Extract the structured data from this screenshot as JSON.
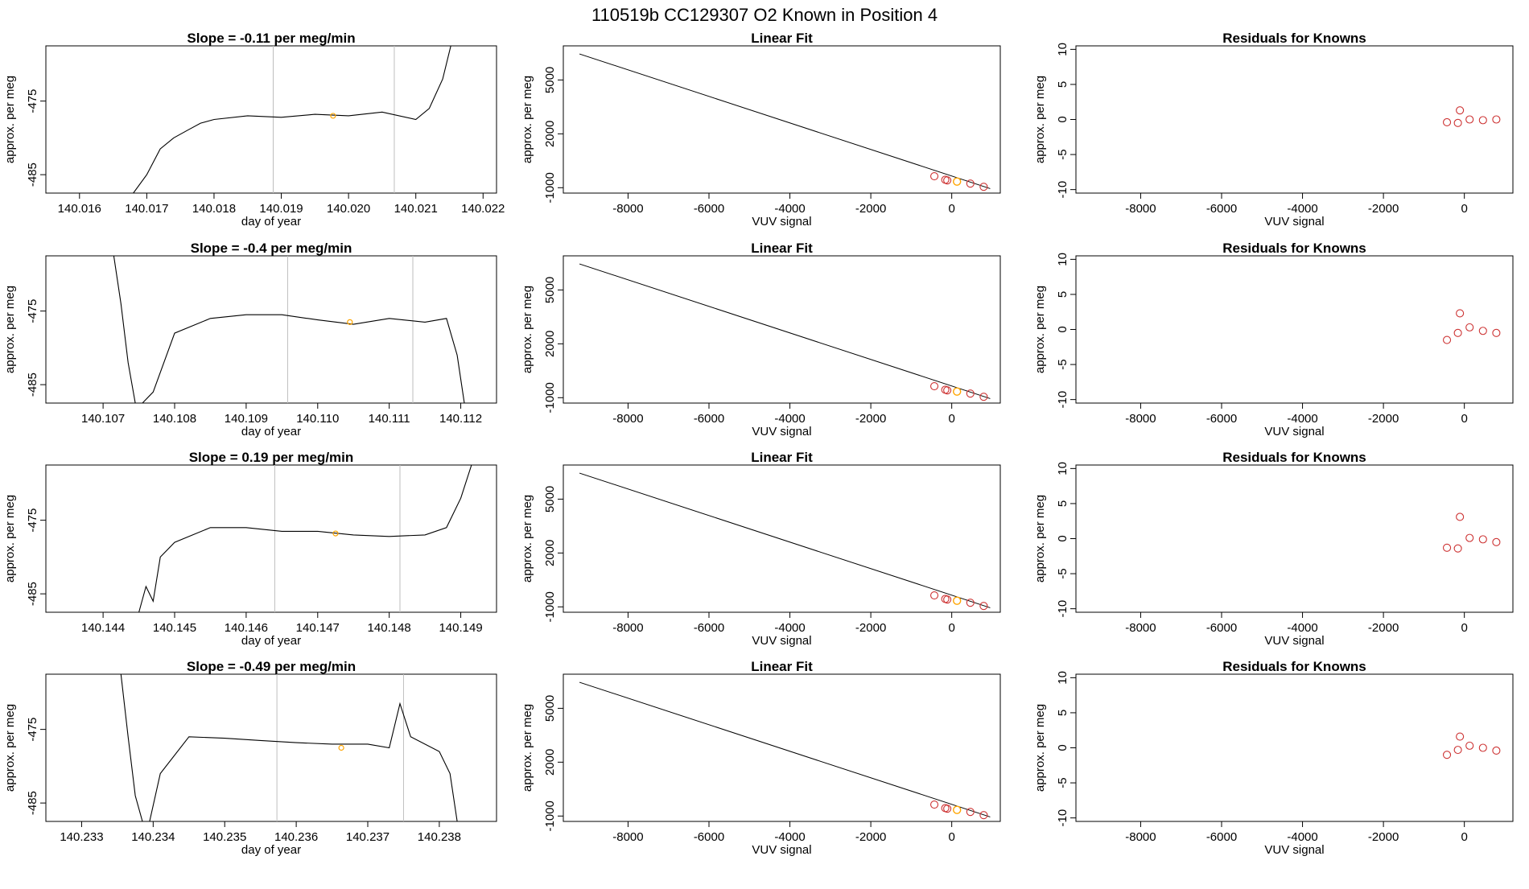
{
  "page_title": "110519b      CC129307    O2 Known in Position  4",
  "colors": {
    "trace": "#000000",
    "marker": "#ffa500",
    "residual": "#cd3333",
    "window": "#bebebe",
    "frame": "#000000"
  },
  "chart_data": [
    {
      "type": "line",
      "title": "Slope =  -0.11  per meg/min",
      "xlabel": "day of year",
      "ylabel": "approx. per meg",
      "xlim": [
        140.0155,
        140.0222
      ],
      "ylim": [
        -487.5,
        -467.5
      ],
      "xticks": [
        "140.016",
        "140.017",
        "140.018",
        "140.019",
        "140.020",
        "140.021",
        "140.022"
      ],
      "xtick_values": [
        140.016,
        140.017,
        140.018,
        140.019,
        140.02,
        140.021,
        140.022
      ],
      "yticks": [
        "-485",
        "-475"
      ],
      "ytick_values": [
        -485,
        -475
      ],
      "window_lines": [
        140.01888,
        140.02068
      ],
      "marker": [
        140.01977,
        -477.0
      ],
      "series": [
        {
          "x": [
            140.0168,
            140.017,
            140.0172,
            140.0174,
            140.0176,
            140.0178,
            140.018,
            140.0185,
            140.019,
            140.0195,
            140.02,
            140.0205,
            140.021,
            140.0212,
            140.0214,
            140.02152
          ],
          "y": [
            -487.5,
            -485.0,
            -481.5,
            -480.0,
            -479.0,
            -478.0,
            -477.5,
            -477.0,
            -477.2,
            -476.8,
            -477.0,
            -476.5,
            -477.5,
            -476.0,
            -472.0,
            -467.5
          ]
        }
      ]
    },
    {
      "type": "line",
      "title": "Slope =  -0.4  per meg/min",
      "xlabel": "day of year",
      "ylabel": "approx. per meg",
      "xlim": [
        140.1062,
        140.1125
      ],
      "ylim": [
        -487.5,
        -467.5
      ],
      "xticks": [
        "140.107",
        "140.108",
        "140.109",
        "140.110",
        "140.111",
        "140.112"
      ],
      "xtick_values": [
        140.107,
        140.108,
        140.109,
        140.11,
        140.111,
        140.112
      ],
      "yticks": [
        "-485",
        "-475"
      ],
      "ytick_values": [
        -485,
        -475
      ],
      "window_lines": [
        140.10958,
        140.11133
      ],
      "marker": [
        140.11045,
        -476.5
      ],
      "series": [
        {
          "x": [
            140.10715,
            140.10725,
            140.10735,
            140.10745,
            140.10755,
            140.1077,
            140.108,
            140.1085,
            140.109,
            140.1095,
            140.11,
            140.1105,
            140.111,
            140.1115,
            140.1118,
            140.11195,
            140.11205
          ],
          "y": [
            -467.5,
            -474.0,
            -482.0,
            -487.5,
            -487.5,
            -486.0,
            -478.0,
            -476.0,
            -475.5,
            -475.5,
            -476.2,
            -476.8,
            -476.0,
            -476.5,
            -476.0,
            -481.0,
            -487.5
          ]
        }
      ]
    },
    {
      "type": "line",
      "title": "Slope =  0.19  per meg/min",
      "xlabel": "day of year",
      "ylabel": "approx. per meg",
      "xlim": [
        140.1432,
        140.1495
      ],
      "ylim": [
        -487.5,
        -467.5
      ],
      "xticks": [
        "140.144",
        "140.145",
        "140.146",
        "140.147",
        "140.148",
        "140.149"
      ],
      "xtick_values": [
        140.144,
        140.145,
        140.146,
        140.147,
        140.148,
        140.149
      ],
      "yticks": [
        "-485",
        "-475"
      ],
      "ytick_values": [
        -485,
        -475
      ],
      "window_lines": [
        140.1464,
        140.14815
      ],
      "marker": [
        140.14725,
        -476.8
      ],
      "series": [
        {
          "x": [
            140.1445,
            140.1446,
            140.1447,
            140.1448,
            140.145,
            140.1455,
            140.146,
            140.1465,
            140.147,
            140.1475,
            140.148,
            140.1485,
            140.1488,
            140.149,
            140.14915
          ],
          "y": [
            -487.5,
            -484.0,
            -486.0,
            -480.0,
            -478.0,
            -476.0,
            -476.0,
            -476.5,
            -476.5,
            -477.0,
            -477.2,
            -477.0,
            -476.0,
            -472.0,
            -467.5
          ]
        }
      ]
    },
    {
      "type": "line",
      "title": "Slope =  -0.49  per meg/min",
      "xlabel": "day of year",
      "ylabel": "approx. per meg",
      "xlim": [
        140.2325,
        140.2388
      ],
      "ylim": [
        -487.5,
        -467.5
      ],
      "xticks": [
        "140.233",
        "140.234",
        "140.235",
        "140.236",
        "140.237",
        "140.238"
      ],
      "xtick_values": [
        140.233,
        140.234,
        140.235,
        140.236,
        140.237,
        140.238
      ],
      "yticks": [
        "-485",
        "-475"
      ],
      "ytick_values": [
        -485,
        -475
      ],
      "window_lines": [
        140.23573,
        140.2375
      ],
      "marker": [
        140.23663,
        -477.5
      ],
      "series": [
        {
          "x": [
            140.23355,
            140.23365,
            140.23375,
            140.23385,
            140.23395,
            140.2341,
            140.2345,
            140.235,
            140.2355,
            140.236,
            140.2365,
            140.237,
            140.2373,
            140.23745,
            140.2376,
            140.238,
            140.23815,
            140.23825
          ],
          "y": [
            -467.5,
            -476.0,
            -484.0,
            -487.5,
            -487.5,
            -481.0,
            -476.0,
            -476.2,
            -476.5,
            -476.8,
            -477.0,
            -477.0,
            -477.5,
            -471.5,
            -476.0,
            -478.0,
            -481.0,
            -487.5
          ]
        }
      ]
    },
    {
      "type": "scatter",
      "title": "Linear Fit",
      "xlabel": "VUV signal",
      "ylabel": "approx. per meg",
      "xlim": [
        -9600,
        1200
      ],
      "ylim": [
        -1300,
        6900
      ],
      "xticks": [
        "-8000",
        "-6000",
        "-4000",
        "-2000",
        "0"
      ],
      "xtick_values": [
        -8000,
        -6000,
        -4000,
        -2000,
        0
      ],
      "yticks": [
        "-1000",
        "2000",
        "5000"
      ],
      "ytick_values": [
        -1000,
        2000,
        5000
      ],
      "line": {
        "x": [
          -9200,
          950
        ],
        "y": [
          6450,
          -1050
        ]
      },
      "points": [
        [
          -430,
          -360
        ],
        [
          -160,
          -560
        ],
        [
          -110,
          -590
        ],
        [
          790,
          -950
        ],
        [
          460,
          -770
        ]
      ],
      "known": [
        [
          130,
          -660
        ]
      ]
    },
    {
      "type": "scatter",
      "title": "Linear Fit",
      "xlabel": "VUV signal",
      "ylabel": "approx. per meg",
      "xlim": [
        -9600,
        1200
      ],
      "ylim": [
        -1300,
        6900
      ],
      "xticks": [
        "-8000",
        "-6000",
        "-4000",
        "-2000",
        "0"
      ],
      "xtick_values": [
        -8000,
        -6000,
        -4000,
        -2000,
        0
      ],
      "yticks": [
        "-1000",
        "2000",
        "5000"
      ],
      "ytick_values": [
        -1000,
        2000,
        5000
      ],
      "line": {
        "x": [
          -9200,
          950
        ],
        "y": [
          6450,
          -1050
        ]
      },
      "points": [
        [
          -430,
          -360
        ],
        [
          -160,
          -560
        ],
        [
          -110,
          -590
        ],
        [
          790,
          -950
        ],
        [
          460,
          -770
        ]
      ],
      "known": [
        [
          130,
          -660
        ]
      ]
    },
    {
      "type": "scatter",
      "title": "Linear Fit",
      "xlabel": "VUV signal",
      "ylabel": "approx. per meg",
      "xlim": [
        -9600,
        1200
      ],
      "ylim": [
        -1300,
        6900
      ],
      "xticks": [
        "-8000",
        "-6000",
        "-4000",
        "-2000",
        "0"
      ],
      "xtick_values": [
        -8000,
        -6000,
        -4000,
        -2000,
        0
      ],
      "yticks": [
        "-1000",
        "2000",
        "5000"
      ],
      "ytick_values": [
        -1000,
        2000,
        5000
      ],
      "line": {
        "x": [
          -9200,
          950
        ],
        "y": [
          6450,
          -1050
        ]
      },
      "points": [
        [
          -430,
          -360
        ],
        [
          -160,
          -560
        ],
        [
          -110,
          -590
        ],
        [
          790,
          -950
        ],
        [
          460,
          -770
        ]
      ],
      "known": [
        [
          130,
          -660
        ]
      ]
    },
    {
      "type": "scatter",
      "title": "Linear Fit",
      "xlabel": "VUV signal",
      "ylabel": "approx. per meg",
      "xlim": [
        -9600,
        1200
      ],
      "ylim": [
        -1300,
        6900
      ],
      "xticks": [
        "-8000",
        "-6000",
        "-4000",
        "-2000",
        "0"
      ],
      "xtick_values": [
        -8000,
        -6000,
        -4000,
        -2000,
        0
      ],
      "yticks": [
        "-1000",
        "2000",
        "5000"
      ],
      "ytick_values": [
        -1000,
        2000,
        5000
      ],
      "line": {
        "x": [
          -9200,
          950
        ],
        "y": [
          6450,
          -1050
        ]
      },
      "points": [
        [
          -430,
          -360
        ],
        [
          -160,
          -560
        ],
        [
          -110,
          -590
        ],
        [
          790,
          -950
        ],
        [
          460,
          -770
        ]
      ],
      "known": [
        [
          130,
          -660
        ]
      ]
    },
    {
      "type": "scatter",
      "title": "Residuals for Knowns",
      "xlabel": "VUV signal",
      "ylabel": "approx. per meg",
      "xlim": [
        -9600,
        1200
      ],
      "ylim": [
        -10.5,
        10.5
      ],
      "xticks": [
        "-8000",
        "-6000",
        "-4000",
        "-2000",
        "0"
      ],
      "xtick_values": [
        -8000,
        -6000,
        -4000,
        -2000,
        0
      ],
      "yticks": [
        "-10",
        "-5",
        "0",
        "5",
        "10"
      ],
      "ytick_values": [
        -10,
        -5,
        0,
        5,
        10
      ],
      "points": [
        [
          -430,
          -0.4
        ],
        [
          -160,
          -0.5
        ],
        [
          -110,
          1.3
        ],
        [
          130,
          0.0
        ],
        [
          460,
          -0.1
        ],
        [
          790,
          0.0
        ]
      ]
    },
    {
      "type": "scatter",
      "title": "Residuals for Knowns",
      "xlabel": "VUV signal",
      "ylabel": "approx. per meg",
      "xlim": [
        -9600,
        1200
      ],
      "ylim": [
        -10.5,
        10.5
      ],
      "xticks": [
        "-8000",
        "-6000",
        "-4000",
        "-2000",
        "0"
      ],
      "xtick_values": [
        -8000,
        -6000,
        -4000,
        -2000,
        0
      ],
      "yticks": [
        "-10",
        "-5",
        "0",
        "5",
        "10"
      ],
      "ytick_values": [
        -10,
        -5,
        0,
        5,
        10
      ],
      "points": [
        [
          -430,
          -1.5
        ],
        [
          -160,
          -0.5
        ],
        [
          -110,
          2.3
        ],
        [
          130,
          0.3
        ],
        [
          460,
          -0.2
        ],
        [
          790,
          -0.5
        ]
      ]
    },
    {
      "type": "scatter",
      "title": "Residuals for Knowns",
      "xlabel": "VUV signal",
      "ylabel": "approx. per meg",
      "xlim": [
        -9600,
        1200
      ],
      "ylim": [
        -10.5,
        10.5
      ],
      "xticks": [
        "-8000",
        "-6000",
        "-4000",
        "-2000",
        "0"
      ],
      "xtick_values": [
        -8000,
        -6000,
        -4000,
        -2000,
        0
      ],
      "yticks": [
        "-10",
        "-5",
        "0",
        "5",
        "10"
      ],
      "ytick_values": [
        -10,
        -5,
        0,
        5,
        10
      ],
      "points": [
        [
          -430,
          -1.3
        ],
        [
          -160,
          -1.4
        ],
        [
          -110,
          3.1
        ],
        [
          130,
          0.1
        ],
        [
          460,
          -0.1
        ],
        [
          790,
          -0.5
        ]
      ]
    },
    {
      "type": "scatter",
      "title": "Residuals for Knowns",
      "xlabel": "VUV signal",
      "ylabel": "approx. per meg",
      "xlim": [
        -9600,
        1200
      ],
      "ylim": [
        -10.5,
        10.5
      ],
      "xticks": [
        "-8000",
        "-6000",
        "-4000",
        "-2000",
        "0"
      ],
      "xtick_values": [
        -8000,
        -6000,
        -4000,
        -2000,
        0
      ],
      "yticks": [
        "-10",
        "-5",
        "0",
        "5",
        "10"
      ],
      "ytick_values": [
        -10,
        -5,
        0,
        5,
        10
      ],
      "points": [
        [
          -430,
          -1.0
        ],
        [
          -160,
          -0.3
        ],
        [
          -110,
          1.6
        ],
        [
          130,
          0.3
        ],
        [
          460,
          0.0
        ],
        [
          790,
          -0.4
        ]
      ]
    }
  ]
}
